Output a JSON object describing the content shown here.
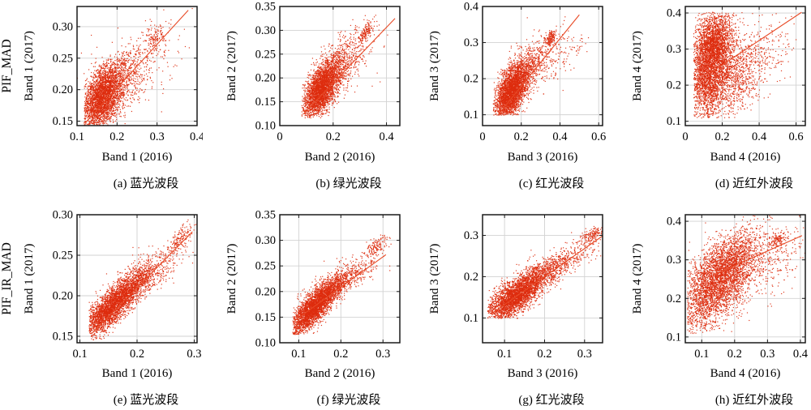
{
  "meta": {
    "colors": {
      "scatter": "#DD2C0E",
      "scatter_rgba": "rgba(221,44,14,0.92)",
      "fit_line": "#E84A26",
      "grid": "#D2D2D2",
      "axis": "#1A1A1A",
      "text": "#000000"
    }
  },
  "chart_data": [
    {
      "panel": "a",
      "type": "scatter",
      "method": "PIF_MAD",
      "row_label": "PIF_MAD",
      "title": "(a) 蓝光波段",
      "caption": "(a) 蓝光波段",
      "xlabel": "Band 1 (2016)",
      "ylabel": "Band 1 (2017)",
      "xlim": [
        0.1,
        0.4
      ],
      "ylim": [
        0.143,
        0.332
      ],
      "xticks": [
        0.1,
        0.2,
        0.3,
        0.4
      ],
      "yticks": [
        0.15,
        0.2,
        0.25,
        0.3
      ],
      "xtick_labels": [
        "0.1",
        "0.2",
        "0.3",
        "0.4"
      ],
      "ytick_labels": [
        "0.15",
        "0.20",
        "0.25",
        "0.30"
      ],
      "grid": true,
      "fit_line": [
        0.12,
        0.147,
        0.378,
        0.326
      ],
      "cloud_model": [
        {
          "cx": 0.162,
          "cy": 0.186,
          "sx": 0.027,
          "sy": 0.026,
          "rho": 0.45,
          "n": 2600,
          "b": [
            0.118,
            0.42,
            0.144,
            0.4
          ]
        },
        {
          "cx": 0.205,
          "cy": 0.215,
          "sx": 0.042,
          "sy": 0.028,
          "rho": 0.55,
          "n": 700,
          "b": [
            0.118,
            0.42,
            0.144,
            0.4
          ]
        },
        {
          "cx": 0.297,
          "cy": 0.283,
          "sx": 0.017,
          "sy": 0.011,
          "rho": 0.6,
          "n": 130
        },
        {
          "cx": 0.26,
          "cy": 0.24,
          "sx": 0.055,
          "sy": 0.033,
          "rho": 0.45,
          "n": 180
        }
      ]
    },
    {
      "panel": "b",
      "type": "scatter",
      "method": "PIF_MAD",
      "title": "(b) 绿光波段",
      "caption": "(b) 绿光波段",
      "xlabel": "Band 2 (2016)",
      "ylabel": "Band 2 (2017)",
      "xlim": [
        0,
        0.45
      ],
      "ylim": [
        0.1,
        0.35
      ],
      "xticks": [
        0,
        0.2,
        0.4
      ],
      "yticks": [
        0.1,
        0.15,
        0.2,
        0.25,
        0.3,
        0.35
      ],
      "xtick_labels": [
        "0",
        "0.2",
        "0.4"
      ],
      "ytick_labels": [
        "0.10",
        "0.15",
        "0.20",
        "0.25",
        "0.30",
        "0.35"
      ],
      "grid": true,
      "fit_line": [
        0.09,
        0.125,
        0.432,
        0.325
      ],
      "cloud_model": [
        {
          "cx": 0.155,
          "cy": 0.175,
          "sx": 0.033,
          "sy": 0.03,
          "rho": 0.55,
          "n": 2600,
          "b": [
            0.082,
            0.6,
            0.116,
            0.5
          ]
        },
        {
          "cx": 0.215,
          "cy": 0.22,
          "sx": 0.048,
          "sy": 0.033,
          "rho": 0.6,
          "n": 650,
          "b": [
            0.082,
            0.6,
            0.116,
            0.5
          ]
        },
        {
          "cx": 0.325,
          "cy": 0.297,
          "sx": 0.016,
          "sy": 0.011,
          "rho": 0.7,
          "n": 130
        },
        {
          "cx": 0.27,
          "cy": 0.245,
          "sx": 0.055,
          "sy": 0.038,
          "rho": 0.5,
          "n": 170
        }
      ]
    },
    {
      "panel": "c",
      "type": "scatter",
      "method": "PIF_MAD",
      "title": "(c) 红光波段",
      "caption": "(c) 红光波段",
      "xlabel": "Band 3 (2016)",
      "ylabel": "Band 3 (2017)",
      "xlim": [
        0,
        0.62
      ],
      "ylim": [
        0.07,
        0.4
      ],
      "xticks": [
        0,
        0.2,
        0.4,
        0.6
      ],
      "yticks": [
        0.1,
        0.2,
        0.3,
        0.4
      ],
      "xtick_labels": [
        "0",
        "0.2",
        "0.4",
        "0.6"
      ],
      "ytick_labels": [
        "0.1",
        "0.2",
        "0.3",
        "0.4"
      ],
      "grid": true,
      "fit_line": [
        0.08,
        0.1,
        0.5,
        0.377
      ],
      "cloud_model": [
        {
          "cx": 0.148,
          "cy": 0.163,
          "sx": 0.043,
          "sy": 0.04,
          "rho": 0.55,
          "n": 2700,
          "b": [
            0.056,
            0.8,
            0.099,
            0.5
          ]
        },
        {
          "cx": 0.235,
          "cy": 0.228,
          "sx": 0.058,
          "sy": 0.038,
          "rho": 0.6,
          "n": 550,
          "b": [
            0.056,
            0.8,
            0.099,
            0.5
          ]
        },
        {
          "cx": 0.352,
          "cy": 0.312,
          "sx": 0.014,
          "sy": 0.011,
          "rho": 0.6,
          "n": 130
        },
        {
          "cx": 0.32,
          "cy": 0.25,
          "sx": 0.075,
          "sy": 0.045,
          "rho": 0.4,
          "n": 200,
          "b": [
            0.056,
            0.8,
            0.099,
            0.5
          ]
        },
        {
          "cx": 0.49,
          "cy": 0.3,
          "sx": 0.045,
          "sy": 0.022,
          "rho": 0.3,
          "n": 30
        }
      ]
    },
    {
      "panel": "d",
      "type": "scatter",
      "method": "PIF_MAD",
      "title": "(d) 近红外波段",
      "caption": "(d) 近红外波段",
      "xlabel": "Band 4 (2016)",
      "ylabel": "Band 4 (2017)",
      "xlim": [
        0,
        0.65
      ],
      "ylim": [
        0.088,
        0.418
      ],
      "xticks": [
        0,
        0.2,
        0.4,
        0.6
      ],
      "yticks": [
        0.1,
        0.2,
        0.3,
        0.4
      ],
      "xtick_labels": [
        "0",
        "0.2",
        "0.4",
        "0.6"
      ],
      "ytick_labels": [
        "0.1",
        "0.2",
        "0.3",
        "0.4"
      ],
      "grid": true,
      "fit_line": [
        0.13,
        0.232,
        0.63,
        0.402
      ],
      "cloud_model": [
        {
          "cx": 0.135,
          "cy": 0.25,
          "sx": 0.055,
          "sy": 0.072,
          "rho": 0.25,
          "n": 3000,
          "b": [
            0.046,
            0.9,
            0.109,
            0.402
          ]
        },
        {
          "cx": 0.165,
          "cy": 0.325,
          "sx": 0.05,
          "sy": 0.042,
          "rho": 0.2,
          "n": 900,
          "b": [
            0.046,
            0.9,
            0.109,
            0.402
          ]
        },
        {
          "cx": 0.27,
          "cy": 0.22,
          "sx": 0.065,
          "sy": 0.055,
          "rho": 0.3,
          "n": 700,
          "b": [
            0.046,
            0.9,
            0.109,
            0.402
          ]
        },
        {
          "cx": 0.42,
          "cy": 0.285,
          "sx": 0.085,
          "sy": 0.055,
          "rho": 0.3,
          "n": 260,
          "b": [
            0.046,
            0.9,
            0.109,
            0.402
          ]
        }
      ]
    },
    {
      "panel": "e",
      "type": "scatter",
      "method": "PIF_IR_MAD",
      "row_label": "PIF_IR_MAD",
      "title": "(e) 蓝光波段",
      "caption": "(e) 蓝光波段",
      "xlabel": "Band 1 (2016)",
      "ylabel": "Band 1 (2017)",
      "xlim": [
        0.095,
        0.305
      ],
      "ylim": [
        0.142,
        0.3
      ],
      "xticks": [
        0.1,
        0.2,
        0.3
      ],
      "yticks": [
        0.15,
        0.2,
        0.25,
        0.3
      ],
      "xtick_labels": [
        "0.1",
        "0.2",
        "0.3"
      ],
      "ytick_labels": [
        "0.15",
        "0.20",
        "0.25",
        "0.30"
      ],
      "grid": true,
      "fit_line": [
        0.12,
        0.153,
        0.297,
        0.279
      ],
      "cloud_model": [
        {
          "cx": 0.155,
          "cy": 0.186,
          "sx": 0.027,
          "sy": 0.02,
          "rho": 0.82,
          "n": 2700,
          "b": [
            0.116,
            0.4,
            0.145,
            0.4
          ]
        },
        {
          "cx": 0.2,
          "cy": 0.215,
          "sx": 0.028,
          "sy": 0.017,
          "rho": 0.8,
          "n": 650,
          "b": [
            0.116,
            0.4,
            0.145,
            0.4
          ]
        },
        {
          "cx": 0.276,
          "cy": 0.272,
          "sx": 0.011,
          "sy": 0.009,
          "rho": 0.7,
          "n": 150
        },
        {
          "cx": 0.225,
          "cy": 0.232,
          "sx": 0.038,
          "sy": 0.02,
          "rho": 0.75,
          "n": 260
        }
      ]
    },
    {
      "panel": "f",
      "type": "scatter",
      "method": "PIF_IR_MAD",
      "title": "(f) 绿光波段",
      "caption": "(f) 绿光波段",
      "xlabel": "Band 2 (2016)",
      "ylabel": "Band 2 (2017)",
      "xlim": [
        0.055,
        0.34
      ],
      "ylim": [
        0.1,
        0.35
      ],
      "xticks": [
        0.1,
        0.2,
        0.3
      ],
      "yticks": [
        0.1,
        0.15,
        0.2,
        0.25,
        0.3,
        0.35
      ],
      "xtick_labels": [
        "0.1",
        "0.2",
        "0.3"
      ],
      "ytick_labels": [
        "0.10",
        "0.15",
        "0.20",
        "0.25",
        "0.30",
        "0.35"
      ],
      "grid": true,
      "fit_line": [
        0.09,
        0.143,
        0.307,
        0.272
      ],
      "cloud_model": [
        {
          "cx": 0.135,
          "cy": 0.167,
          "sx": 0.03,
          "sy": 0.026,
          "rho": 0.8,
          "n": 2700,
          "b": [
            0.086,
            0.4,
            0.116,
            0.4
          ]
        },
        {
          "cx": 0.19,
          "cy": 0.212,
          "sx": 0.033,
          "sy": 0.021,
          "rho": 0.8,
          "n": 600,
          "b": [
            0.086,
            0.4,
            0.116,
            0.4
          ]
        },
        {
          "cx": 0.285,
          "cy": 0.289,
          "sx": 0.012,
          "sy": 0.01,
          "rho": 0.6,
          "n": 140
        },
        {
          "cx": 0.225,
          "cy": 0.235,
          "sx": 0.04,
          "sy": 0.023,
          "rho": 0.7,
          "n": 220
        }
      ]
    },
    {
      "panel": "g",
      "type": "scatter",
      "method": "PIF_IR_MAD",
      "title": "(g) 红光波段",
      "caption": "(g) 红光波段",
      "xlabel": "Band 3 (2016)",
      "ylabel": "Band 3 (2017)",
      "xlim": [
        0.045,
        0.345
      ],
      "ylim": [
        0.04,
        0.35
      ],
      "xticks": [
        0.1,
        0.2,
        0.3
      ],
      "yticks": [
        0.1,
        0.2,
        0.3
      ],
      "xtick_labels": [
        "0.1",
        "0.2",
        "0.3"
      ],
      "ytick_labels": [
        "0.1",
        "0.2",
        "0.3"
      ],
      "grid": true,
      "fit_line": [
        0.07,
        0.112,
        0.35,
        0.302
      ],
      "cloud_model": [
        {
          "cx": 0.128,
          "cy": 0.152,
          "sx": 0.038,
          "sy": 0.032,
          "rho": 0.75,
          "n": 2700,
          "b": [
            0.058,
            0.5,
            0.099,
            0.5
          ]
        },
        {
          "cx": 0.2,
          "cy": 0.208,
          "sx": 0.042,
          "sy": 0.028,
          "rho": 0.75,
          "n": 620,
          "b": [
            0.058,
            0.5,
            0.099,
            0.5
          ]
        },
        {
          "cx": 0.318,
          "cy": 0.3,
          "sx": 0.014,
          "sy": 0.011,
          "rho": 0.6,
          "n": 140
        },
        {
          "cx": 0.25,
          "cy": 0.24,
          "sx": 0.048,
          "sy": 0.028,
          "rho": 0.7,
          "n": 230
        }
      ]
    },
    {
      "panel": "h",
      "type": "scatter",
      "method": "PIF_IR_MAD",
      "title": "(h) 近红外波段",
      "caption": "(h) 近红外波段",
      "xlabel": "Band 4 (2016)",
      "ylabel": "Band 4 (2017)",
      "xlim": [
        0.05,
        0.415
      ],
      "ylim": [
        0.085,
        0.417
      ],
      "xticks": [
        0.1,
        0.2,
        0.3,
        0.4
      ],
      "yticks": [
        0.1,
        0.2,
        0.3,
        0.4
      ],
      "xtick_labels": [
        "0.1",
        "0.2",
        "0.3",
        "0.4"
      ],
      "ytick_labels": [
        "0.1",
        "0.2",
        "0.3",
        "0.4"
      ],
      "grid": true,
      "fit_line": [
        0.14,
        0.262,
        0.405,
        0.363
      ],
      "cloud_model": [
        {
          "cx": 0.145,
          "cy": 0.235,
          "sx": 0.055,
          "sy": 0.058,
          "rho": 0.55,
          "n": 2900,
          "b": [
            0.057,
            0.6,
            0.109,
            0.45
          ]
        },
        {
          "cx": 0.19,
          "cy": 0.3,
          "sx": 0.05,
          "sy": 0.04,
          "rho": 0.45,
          "n": 850,
          "b": [
            0.057,
            0.6,
            0.109,
            0.45
          ]
        },
        {
          "cx": 0.33,
          "cy": 0.352,
          "sx": 0.016,
          "sy": 0.011,
          "rho": 0.5,
          "n": 120
        },
        {
          "cx": 0.295,
          "cy": 0.3,
          "sx": 0.065,
          "sy": 0.048,
          "rho": 0.4,
          "n": 330,
          "b": [
            0.057,
            0.6,
            0.109,
            0.45
          ]
        }
      ]
    }
  ]
}
